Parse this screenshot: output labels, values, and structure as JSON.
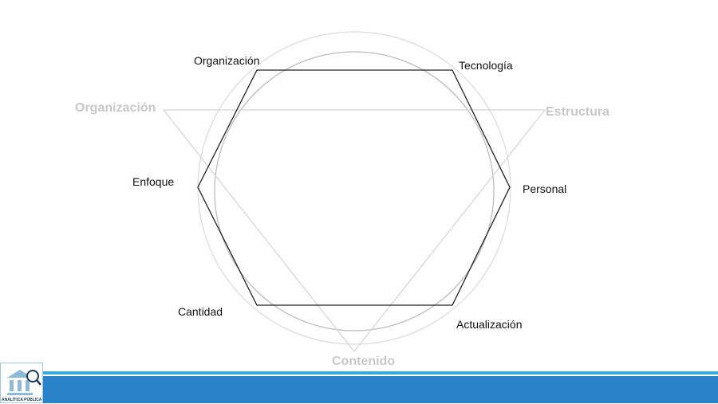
{
  "hexagon_labels": {
    "top_left": "Organización",
    "top_right": "Tecnología",
    "right": "Personal",
    "bottom_right": "Actualización",
    "bottom_left": "Cantidad",
    "left": "Enfoque"
  },
  "triangle_labels": {
    "left": "Organización",
    "right": "Estructura",
    "bottom": "Contenido"
  },
  "logo": {
    "text": "ANALÍTICA PÚBLICA"
  },
  "colors": {
    "bar": "#2a82c8",
    "bar_line": "#35a8e0",
    "triangle_label": "#c8c8c8"
  }
}
